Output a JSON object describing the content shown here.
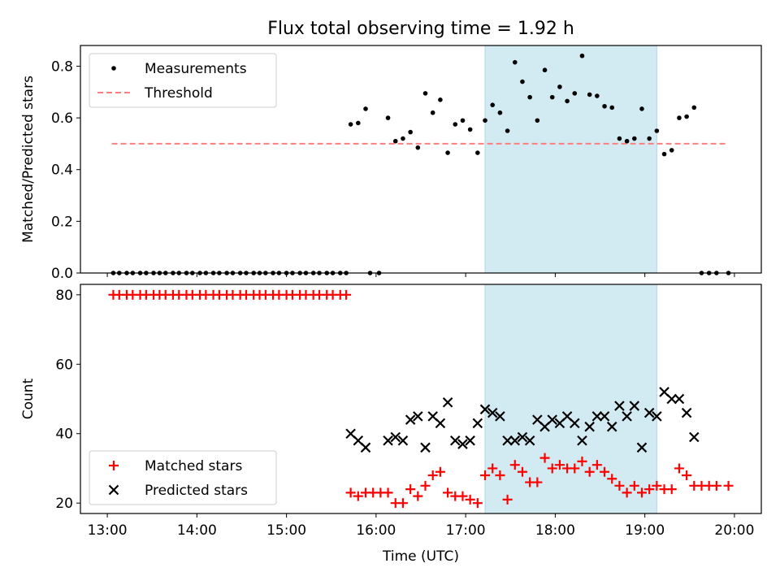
{
  "title": "Flux total observing time = 1.92 h",
  "colors": {
    "measurement": "#000000",
    "threshold": "#ff7f7f",
    "matched": "#ff0000",
    "predicted": "#000000",
    "shade": "#add8e6"
  },
  "chart_data": [
    {
      "type": "scatter",
      "panel": "top",
      "ylabel": "Matched/Predicted stars",
      "xlim": [
        "12:42",
        "20:18"
      ],
      "ylim": [
        0,
        0.88
      ],
      "yticks": [
        "0.0",
        "0.2",
        "0.4",
        "0.6",
        "0.8"
      ],
      "shaded_span": [
        "17:13",
        "19:08"
      ],
      "legend": {
        "position": "upper-left",
        "entries": [
          "Measurements",
          "Threshold"
        ]
      },
      "threshold": {
        "name": "Threshold",
        "value": 0.5,
        "x_range": [
          "13:03",
          "19:56"
        ],
        "style": "dashed"
      },
      "series": [
        {
          "name": "Measurements",
          "marker": "dot",
          "points": [
            [
              "13:04",
              0.0
            ],
            [
              "13:08",
              0.0
            ],
            [
              "13:13",
              0.0
            ],
            [
              "13:17",
              0.0
            ],
            [
              "13:22",
              0.0
            ],
            [
              "13:26",
              0.0
            ],
            [
              "13:31",
              0.0
            ],
            [
              "13:35",
              0.0
            ],
            [
              "13:39",
              0.0
            ],
            [
              "13:44",
              0.0
            ],
            [
              "13:48",
              0.0
            ],
            [
              "13:53",
              0.0
            ],
            [
              "13:57",
              0.0
            ],
            [
              "14:02",
              0.0
            ],
            [
              "14:06",
              0.0
            ],
            [
              "14:11",
              0.0
            ],
            [
              "14:15",
              0.0
            ],
            [
              "14:20",
              0.0
            ],
            [
              "14:24",
              0.0
            ],
            [
              "14:29",
              0.0
            ],
            [
              "14:33",
              0.0
            ],
            [
              "14:38",
              0.0
            ],
            [
              "14:42",
              0.0
            ],
            [
              "14:46",
              0.0
            ],
            [
              "14:51",
              0.0
            ],
            [
              "14:55",
              0.0
            ],
            [
              "15:00",
              0.0
            ],
            [
              "15:04",
              0.0
            ],
            [
              "15:09",
              0.0
            ],
            [
              "15:13",
              0.0
            ],
            [
              "15:18",
              0.0
            ],
            [
              "15:22",
              0.0
            ],
            [
              "15:27",
              0.0
            ],
            [
              "15:31",
              0.0
            ],
            [
              "15:36",
              0.0
            ],
            [
              "15:40",
              0.0
            ],
            [
              "15:56",
              0.0
            ],
            [
              "16:02",
              0.0
            ],
            [
              "15:43",
              0.575
            ],
            [
              "15:48",
              0.58
            ],
            [
              "15:53",
              0.635
            ],
            [
              "16:08",
              0.6
            ],
            [
              "16:13",
              0.51
            ],
            [
              "16:18",
              0.52
            ],
            [
              "16:23",
              0.545
            ],
            [
              "16:28",
              0.485
            ],
            [
              "16:33",
              0.695
            ],
            [
              "16:38",
              0.62
            ],
            [
              "16:43",
              0.67
            ],
            [
              "16:48",
              0.465
            ],
            [
              "16:53",
              0.575
            ],
            [
              "16:58",
              0.59
            ],
            [
              "17:03",
              0.555
            ],
            [
              "17:08",
              0.465
            ],
            [
              "17:13",
              0.59
            ],
            [
              "17:18",
              0.65
            ],
            [
              "17:23",
              0.62
            ],
            [
              "17:28",
              0.55
            ],
            [
              "17:33",
              0.815
            ],
            [
              "17:38",
              0.74
            ],
            [
              "17:43",
              0.68
            ],
            [
              "17:48",
              0.59
            ],
            [
              "17:53",
              0.785
            ],
            [
              "17:58",
              0.68
            ],
            [
              "18:03",
              0.72
            ],
            [
              "18:08",
              0.665
            ],
            [
              "18:13",
              0.695
            ],
            [
              "18:18",
              0.84
            ],
            [
              "18:23",
              0.69
            ],
            [
              "18:28",
              0.685
            ],
            [
              "18:33",
              0.645
            ],
            [
              "18:38",
              0.64
            ],
            [
              "18:43",
              0.52
            ],
            [
              "18:48",
              0.51
            ],
            [
              "18:53",
              0.52
            ],
            [
              "18:58",
              0.635
            ],
            [
              "19:03",
              0.52
            ],
            [
              "19:08",
              0.55
            ],
            [
              "19:13",
              0.46
            ],
            [
              "19:18",
              0.475
            ],
            [
              "19:23",
              0.6
            ],
            [
              "19:28",
              0.605
            ],
            [
              "19:33",
              0.64
            ],
            [
              "19:38",
              0.0
            ],
            [
              "19:43",
              0.0
            ],
            [
              "19:48",
              0.0
            ],
            [
              "19:56",
              0.0
            ]
          ]
        }
      ]
    },
    {
      "type": "scatter",
      "panel": "bottom",
      "xlabel": "Time (UTC)",
      "ylabel": "Count",
      "xlim": [
        "12:42",
        "20:18"
      ],
      "ylim": [
        17,
        83
      ],
      "xticks": [
        "13:00",
        "14:00",
        "15:00",
        "16:00",
        "17:00",
        "18:00",
        "19:00",
        "20:00"
      ],
      "yticks": [
        "20",
        "40",
        "60",
        "80"
      ],
      "shaded_span": [
        "17:13",
        "19:08"
      ],
      "legend": {
        "position": "lower-left",
        "entries": [
          "Matched stars",
          "Predicted stars"
        ]
      },
      "series": [
        {
          "name": "Matched stars",
          "marker": "plus",
          "points": [
            [
              "13:04",
              80
            ],
            [
              "13:08",
              80
            ],
            [
              "13:13",
              80
            ],
            [
              "13:17",
              80
            ],
            [
              "13:22",
              80
            ],
            [
              "13:26",
              80
            ],
            [
              "13:31",
              80
            ],
            [
              "13:35",
              80
            ],
            [
              "13:39",
              80
            ],
            [
              "13:44",
              80
            ],
            [
              "13:48",
              80
            ],
            [
              "13:53",
              80
            ],
            [
              "13:57",
              80
            ],
            [
              "14:02",
              80
            ],
            [
              "14:06",
              80
            ],
            [
              "14:11",
              80
            ],
            [
              "14:15",
              80
            ],
            [
              "14:20",
              80
            ],
            [
              "14:24",
              80
            ],
            [
              "14:29",
              80
            ],
            [
              "14:33",
              80
            ],
            [
              "14:38",
              80
            ],
            [
              "14:42",
              80
            ],
            [
              "14:46",
              80
            ],
            [
              "14:51",
              80
            ],
            [
              "14:55",
              80
            ],
            [
              "15:00",
              80
            ],
            [
              "15:04",
              80
            ],
            [
              "15:09",
              80
            ],
            [
              "15:13",
              80
            ],
            [
              "15:18",
              80
            ],
            [
              "15:22",
              80
            ],
            [
              "15:27",
              80
            ],
            [
              "15:31",
              80
            ],
            [
              "15:36",
              80
            ],
            [
              "15:40",
              80
            ],
            [
              "15:43",
              23
            ],
            [
              "15:48",
              22
            ],
            [
              "15:53",
              23
            ],
            [
              "15:58",
              23
            ],
            [
              "16:03",
              23
            ],
            [
              "16:08",
              23
            ],
            [
              "16:13",
              20
            ],
            [
              "16:18",
              20
            ],
            [
              "16:23",
              24
            ],
            [
              "16:28",
              22
            ],
            [
              "16:33",
              25
            ],
            [
              "16:38",
              28
            ],
            [
              "16:43",
              29
            ],
            [
              "16:48",
              23
            ],
            [
              "16:53",
              22
            ],
            [
              "16:58",
              22
            ],
            [
              "17:03",
              21
            ],
            [
              "17:08",
              20
            ],
            [
              "17:13",
              28
            ],
            [
              "17:18",
              30
            ],
            [
              "17:23",
              28
            ],
            [
              "17:28",
              21
            ],
            [
              "17:33",
              31
            ],
            [
              "17:38",
              29
            ],
            [
              "17:43",
              26
            ],
            [
              "17:48",
              26
            ],
            [
              "17:53",
              33
            ],
            [
              "17:58",
              30
            ],
            [
              "18:03",
              31
            ],
            [
              "18:08",
              30
            ],
            [
              "18:13",
              30
            ],
            [
              "18:18",
              32
            ],
            [
              "18:23",
              29
            ],
            [
              "18:28",
              31
            ],
            [
              "18:33",
              29
            ],
            [
              "18:38",
              27
            ],
            [
              "18:43",
              25
            ],
            [
              "18:48",
              23
            ],
            [
              "18:53",
              25
            ],
            [
              "18:58",
              23
            ],
            [
              "19:03",
              24
            ],
            [
              "19:08",
              25
            ],
            [
              "19:13",
              24
            ],
            [
              "19:18",
              24
            ],
            [
              "19:23",
              30
            ],
            [
              "19:28",
              28
            ],
            [
              "19:33",
              25
            ],
            [
              "19:38",
              25
            ],
            [
              "19:43",
              25
            ],
            [
              "19:48",
              25
            ],
            [
              "19:56",
              25
            ]
          ]
        },
        {
          "name": "Predicted stars",
          "marker": "x",
          "points": [
            [
              "15:43",
              40
            ],
            [
              "15:48",
              38
            ],
            [
              "15:53",
              36
            ],
            [
              "16:08",
              38
            ],
            [
              "16:13",
              39
            ],
            [
              "16:18",
              38
            ],
            [
              "16:23",
              44
            ],
            [
              "16:28",
              45
            ],
            [
              "16:33",
              36
            ],
            [
              "16:38",
              45
            ],
            [
              "16:43",
              43
            ],
            [
              "16:48",
              49
            ],
            [
              "16:53",
              38
            ],
            [
              "16:58",
              37
            ],
            [
              "17:03",
              38
            ],
            [
              "17:08",
              43
            ],
            [
              "17:13",
              47
            ],
            [
              "17:18",
              46
            ],
            [
              "17:23",
              45
            ],
            [
              "17:28",
              38
            ],
            [
              "17:33",
              38
            ],
            [
              "17:38",
              39
            ],
            [
              "17:43",
              38
            ],
            [
              "17:48",
              44
            ],
            [
              "17:53",
              42
            ],
            [
              "17:58",
              44
            ],
            [
              "18:03",
              43
            ],
            [
              "18:08",
              45
            ],
            [
              "18:13",
              43
            ],
            [
              "18:18",
              38
            ],
            [
              "18:23",
              42
            ],
            [
              "18:28",
              45
            ],
            [
              "18:33",
              45
            ],
            [
              "18:38",
              42
            ],
            [
              "18:43",
              48
            ],
            [
              "18:48",
              45
            ],
            [
              "18:53",
              48
            ],
            [
              "18:58",
              36
            ],
            [
              "19:03",
              46
            ],
            [
              "19:08",
              45
            ],
            [
              "19:13",
              52
            ],
            [
              "19:18",
              50
            ],
            [
              "19:23",
              50
            ],
            [
              "19:28",
              46
            ],
            [
              "19:33",
              39
            ]
          ]
        }
      ]
    }
  ]
}
